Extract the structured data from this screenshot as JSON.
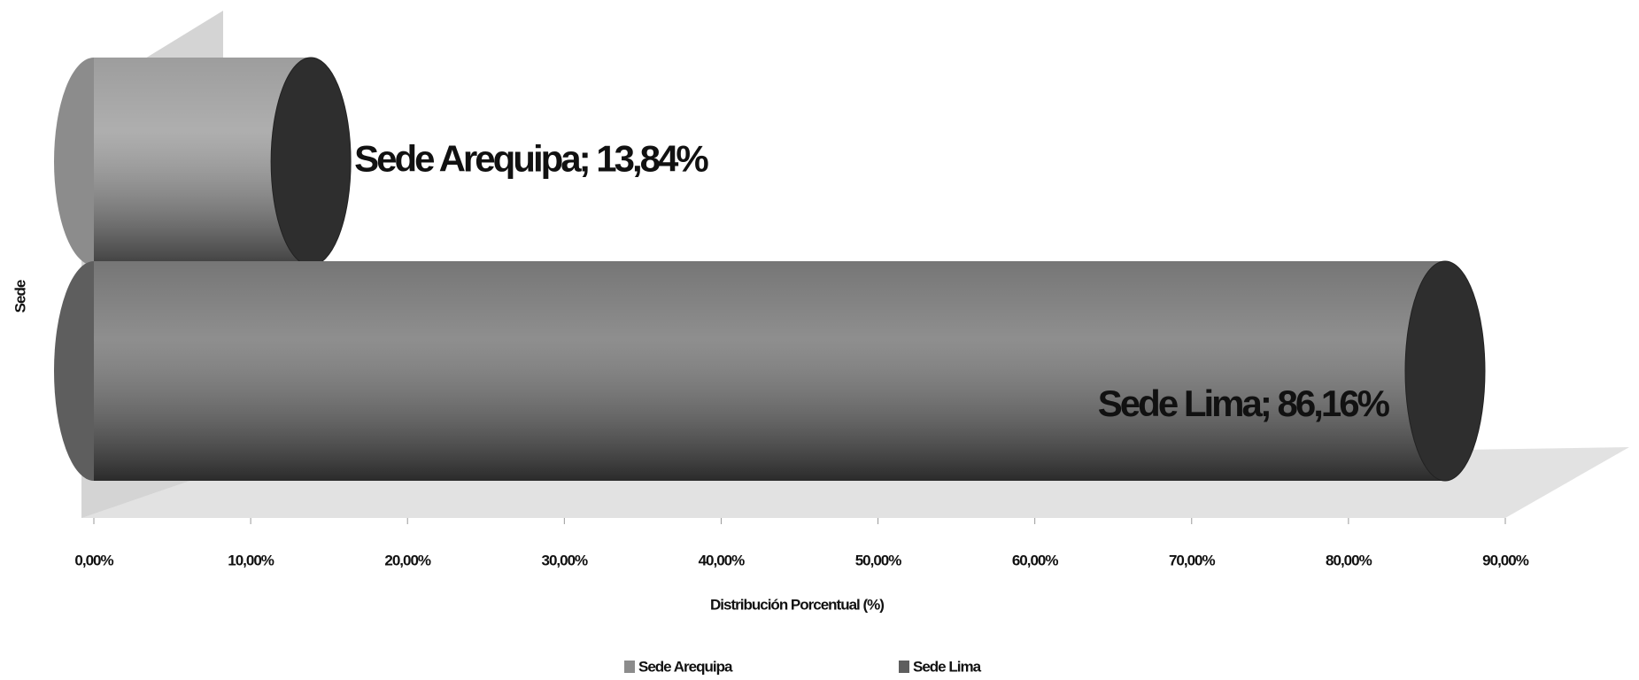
{
  "chart_data": {
    "type": "bar3d-horizontal",
    "categories": [
      null
    ],
    "series": [
      {
        "name": "Sede Arequipa",
        "color": "#8c8c8c",
        "values": [
          13.84
        ],
        "value_labels": [
          "Sede Arequipa; 13,84%"
        ]
      },
      {
        "name": "Sede Lima",
        "color": "#5e5e5e",
        "values": [
          86.16
        ],
        "value_labels": [
          "Sede Lima; 86,16%"
        ]
      }
    ],
    "xlim": [
      0,
      90
    ],
    "xticks": [
      {
        "value": 0,
        "label": "0,00%"
      },
      {
        "value": 10,
        "label": "10,00%"
      },
      {
        "value": 20,
        "label": "20,00%"
      },
      {
        "value": 30,
        "label": "30,00%"
      },
      {
        "value": 40,
        "label": "40,00%"
      },
      {
        "value": 50,
        "label": "50,00%"
      },
      {
        "value": 60,
        "label": "60,00%"
      },
      {
        "value": 70,
        "label": "70,00%"
      },
      {
        "value": 80,
        "label": "80,00%"
      },
      {
        "value": 90,
        "label": "90,00%"
      }
    ],
    "xlabel": "Distribución Porcentual (%)",
    "ylabel": "Sede",
    "legend": "bottom"
  }
}
